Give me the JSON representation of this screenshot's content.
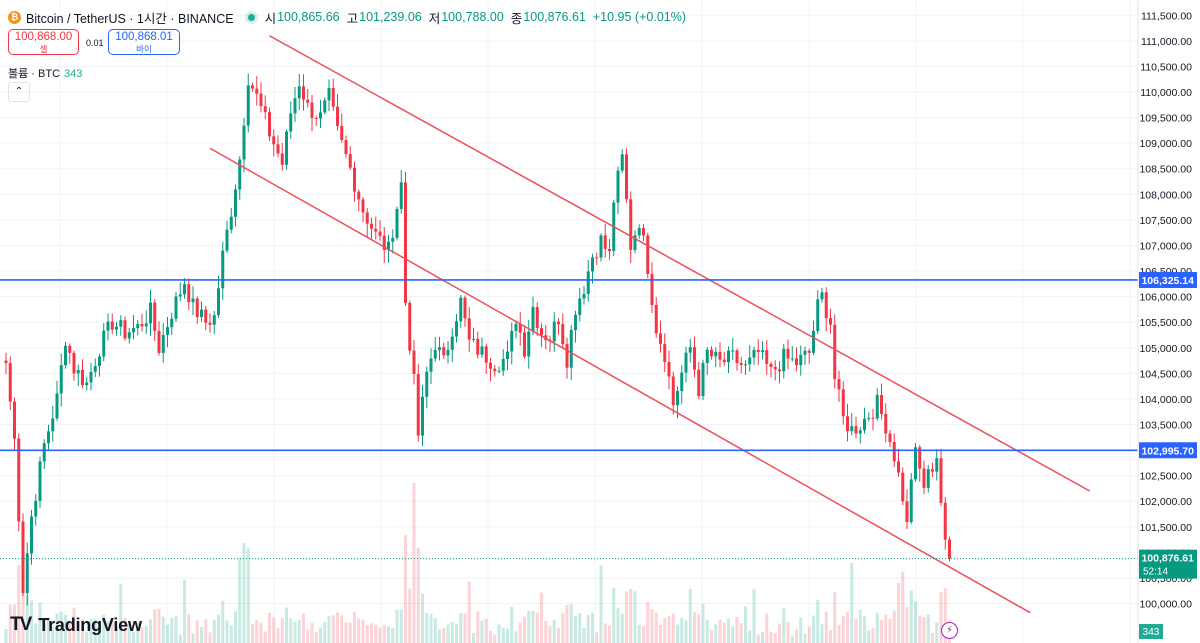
{
  "header": {
    "coin_badge": "₿",
    "symbol_line": "Bitcoin / TetherUS · 1시간 · BINANCE",
    "open_label": "시",
    "open_value": "100,865.66",
    "high_label": "고",
    "high_value": "101,239.06",
    "low_label": "저",
    "low_value": "100,788.00",
    "close_label": "종",
    "close_value": "100,876.61",
    "change_value": "+10.95 (+0.01%)"
  },
  "trade": {
    "sell_price": "100,868.00",
    "sell_label": "셀",
    "spread": "0.01",
    "buy_price": "100,868.01",
    "buy_label": "바이"
  },
  "volume_legend": {
    "label": "볼륨 · BTC",
    "value": "343"
  },
  "collapse_glyph": "⌃",
  "brand": {
    "logo": "TV",
    "name": "TradingView"
  },
  "bolt_glyph": "⚡",
  "colors": {
    "up": "#089981",
    "down": "#f23645",
    "level_line": "#2962ff",
    "channel": "#e8505b",
    "axis_text": "#131722"
  },
  "chart_data": {
    "type": "candlestick",
    "title": "Bitcoin / TetherUS · 1시간 · BINANCE",
    "ylim": [
      99700,
      111600
    ],
    "y_ticks": [
      "111,500.00",
      "111,000.00",
      "110,500.00",
      "110,000.00",
      "109,500.00",
      "109,000.00",
      "108,500.00",
      "108,000.00",
      "107,500.00",
      "107,000.00",
      "106,500.00",
      "106,000.00",
      "105,500.00",
      "105,000.00",
      "104,500.00",
      "104,000.00",
      "103,500.00",
      "103,000.00",
      "102,500.00",
      "102,000.00",
      "101,500.00",
      "101,000.00",
      "100,500.00",
      "100,000.00"
    ],
    "horizontal_levels": [
      {
        "value": 106325.14,
        "label": "106,325.14"
      },
      {
        "value": 102995.7,
        "label": 102995.7,
        "label_text": "102,995.70"
      }
    ],
    "last_price": {
      "value": 100876.61,
      "label": "100,876.61",
      "countdown": "52:14"
    },
    "volume_badge": "343",
    "channel_lines": [
      {
        "start": {
          "bar": 62,
          "price": 111100
        },
        "end": {
          "bar": 255,
          "price": 102200
        }
      },
      {
        "start": {
          "bar": 48,
          "price": 108900
        },
        "end": {
          "bar": 241,
          "price": 99820
        }
      }
    ],
    "anchors": [
      [
        0,
        104700
      ],
      [
        2,
        103200
      ],
      [
        4,
        100300
      ],
      [
        6,
        101700
      ],
      [
        9,
        103100
      ],
      [
        12,
        104000
      ],
      [
        14,
        105200
      ],
      [
        16,
        104600
      ],
      [
        19,
        104300
      ],
      [
        22,
        105000
      ],
      [
        25,
        105500
      ],
      [
        28,
        105300
      ],
      [
        31,
        105400
      ],
      [
        34,
        105700
      ],
      [
        36,
        105000
      ],
      [
        39,
        105700
      ],
      [
        42,
        106300
      ],
      [
        44,
        105800
      ],
      [
        47,
        105500
      ],
      [
        49,
        105600
      ],
      [
        51,
        106800
      ],
      [
        53,
        107700
      ],
      [
        55,
        108700
      ],
      [
        57,
        110300
      ],
      [
        59,
        109900
      ],
      [
        62,
        109200
      ],
      [
        65,
        108600
      ],
      [
        67,
        109600
      ],
      [
        69,
        110200
      ],
      [
        71,
        109700
      ],
      [
        74,
        109500
      ],
      [
        76,
        109900
      ],
      [
        78,
        109200
      ],
      [
        81,
        108500
      ],
      [
        84,
        107700
      ],
      [
        87,
        107200
      ],
      [
        90,
        106900
      ],
      [
        93,
        108200
      ],
      [
        94,
        105900
      ],
      [
        96,
        104300
      ],
      [
        97,
        103300
      ],
      [
        99,
        104500
      ],
      [
        101,
        105100
      ],
      [
        103,
        104700
      ],
      [
        105,
        105400
      ],
      [
        107,
        105900
      ],
      [
        109,
        105100
      ],
      [
        112,
        104900
      ],
      [
        115,
        104700
      ],
      [
        118,
        104800
      ],
      [
        120,
        105600
      ],
      [
        122,
        105000
      ],
      [
        124,
        105800
      ],
      [
        126,
        105300
      ],
      [
        128,
        105200
      ],
      [
        130,
        105600
      ],
      [
        132,
        104800
      ],
      [
        134,
        105800
      ],
      [
        136,
        106200
      ],
      [
        138,
        106800
      ],
      [
        140,
        107100
      ],
      [
        142,
        106800
      ],
      [
        143,
        107900
      ],
      [
        145,
        108700
      ],
      [
        147,
        107000
      ],
      [
        149,
        107500
      ],
      [
        151,
        106600
      ],
      [
        153,
        105400
      ],
      [
        155,
        104900
      ],
      [
        157,
        103900
      ],
      [
        159,
        104500
      ],
      [
        161,
        105000
      ],
      [
        163,
        104200
      ],
      [
        165,
        104900
      ],
      [
        168,
        104700
      ],
      [
        171,
        104800
      ],
      [
        174,
        104600
      ],
      [
        177,
        104900
      ],
      [
        180,
        104500
      ],
      [
        183,
        104800
      ],
      [
        186,
        104700
      ],
      [
        189,
        104900
      ],
      [
        191,
        105800
      ],
      [
        192,
        106000
      ],
      [
        194,
        105500
      ],
      [
        195,
        104400
      ],
      [
        197,
        103600
      ],
      [
        199,
        103400
      ],
      [
        201,
        103500
      ],
      [
        203,
        103700
      ],
      [
        205,
        103900
      ],
      [
        207,
        103500
      ],
      [
        209,
        102900
      ],
      [
        211,
        102100
      ],
      [
        212,
        101500
      ],
      [
        213,
        102500
      ],
      [
        214,
        102900
      ],
      [
        216,
        102300
      ],
      [
        218,
        102700
      ],
      [
        219,
        102900
      ],
      [
        221,
        101100
      ],
      [
        222,
        100877
      ]
    ]
  }
}
